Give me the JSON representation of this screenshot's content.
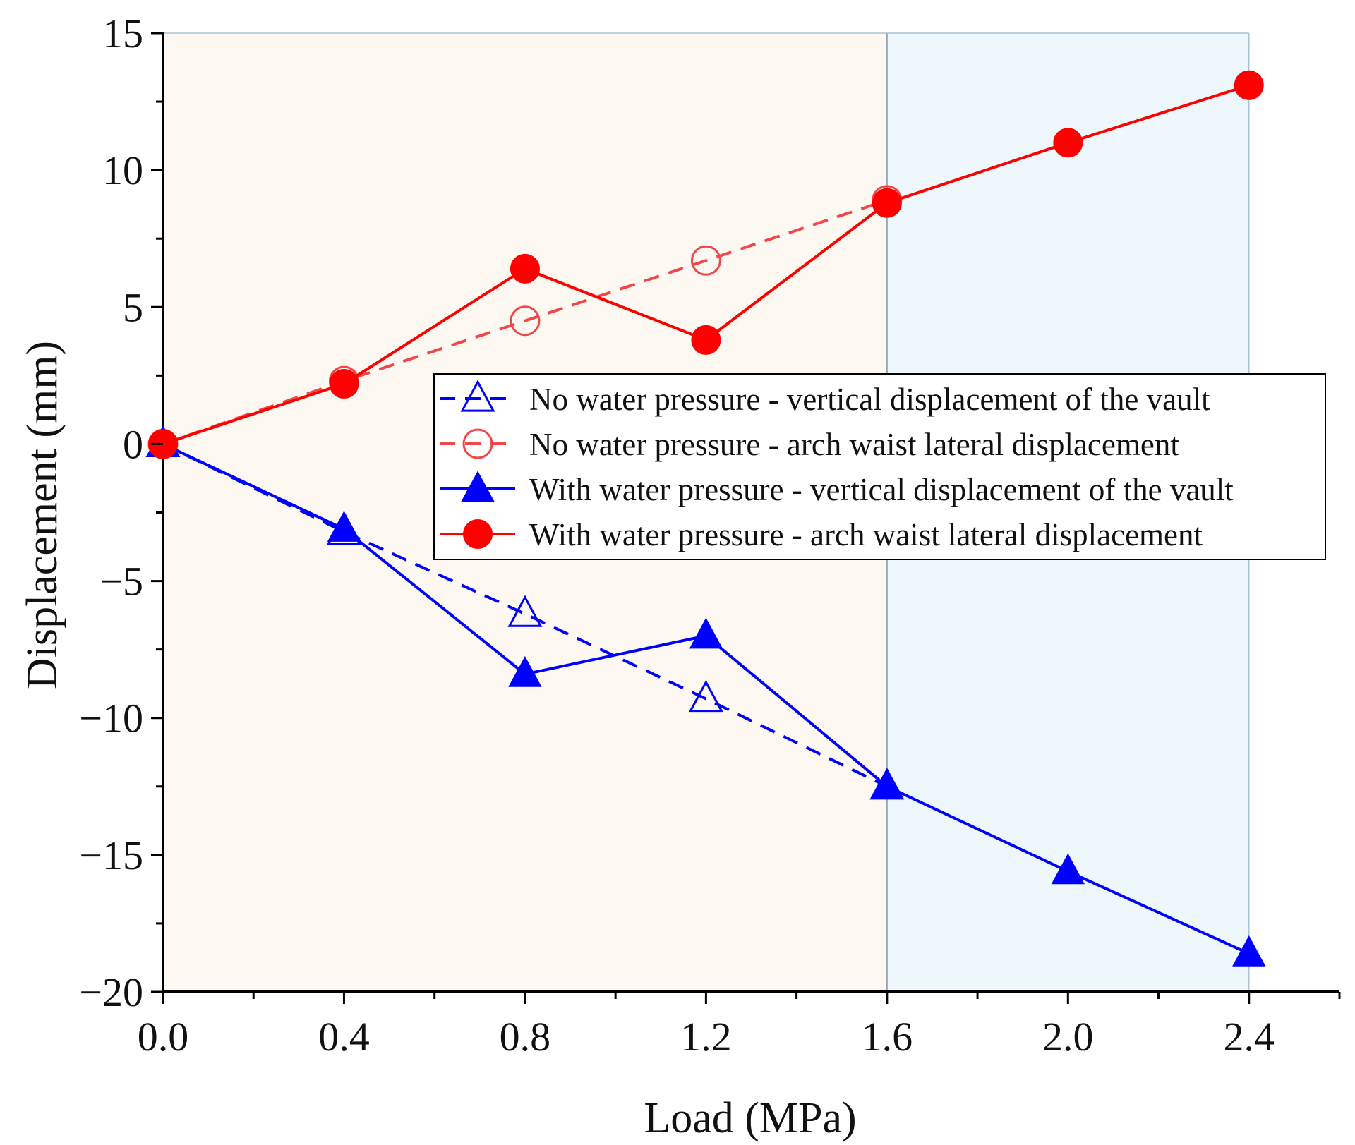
{
  "chart_data": {
    "type": "line",
    "title": "",
    "xlabel": "Load (MPa)",
    "ylabel": "Displacement (mm)",
    "xlim": [
      0.0,
      2.6
    ],
    "ylim": [
      -20,
      15
    ],
    "xticks": [
      0.0,
      0.4,
      0.8,
      1.2,
      1.6,
      2.0,
      2.4
    ],
    "xtick_labels": [
      "0.0",
      "0.4",
      "0.8",
      "1.2",
      "1.6",
      "2.0",
      "2.4"
    ],
    "yticks": [
      -20,
      -15,
      -10,
      -5,
      0,
      5,
      10,
      15
    ],
    "ytick_labels": [
      "−20",
      "−15",
      "−10",
      "−5",
      "0",
      "5",
      "10",
      "15"
    ],
    "grid": false,
    "legend_position": "center-right",
    "regions": [
      {
        "name": "region-a",
        "x_from": 0.0,
        "x_to": 1.6,
        "color": "#fdf8f1"
      },
      {
        "name": "region-b",
        "x_from": 1.6,
        "x_to": 2.4,
        "color": "#eef7fc"
      }
    ],
    "series": [
      {
        "name": "No water pressure - vertical displacement of the vault",
        "color": "#0000ff",
        "line": "dashed",
        "marker": "triangle-open",
        "x": [
          0.0,
          0.4,
          0.8,
          1.2,
          1.6
        ],
        "y": [
          0.0,
          -3.2,
          -6.2,
          -9.3,
          -12.5
        ]
      },
      {
        "name": "No water pressure - arch waist lateral displacement",
        "color": "#f04848",
        "line": "dashed",
        "marker": "circle-open",
        "x": [
          0.0,
          0.4,
          0.8,
          1.2,
          1.6
        ],
        "y": [
          0.0,
          2.3,
          4.5,
          6.7,
          8.9
        ]
      },
      {
        "name": "With water pressure - vertical displacement of the vault",
        "color": "#0000ff",
        "line": "solid",
        "marker": "triangle-filled",
        "x": [
          0.0,
          0.4,
          0.8,
          1.2,
          1.6,
          2.0,
          2.4
        ],
        "y": [
          0.0,
          -3.1,
          -8.4,
          -7.0,
          -12.5,
          -15.6,
          -18.6
        ]
      },
      {
        "name": "With water pressure - arch waist lateral displacement",
        "color": "#ff0000",
        "line": "solid",
        "marker": "circle-filled",
        "x": [
          0.0,
          0.4,
          0.8,
          1.2,
          1.6,
          2.0,
          2.4
        ],
        "y": [
          0.0,
          2.2,
          6.4,
          3.8,
          8.8,
          11.0,
          13.1
        ]
      }
    ]
  }
}
